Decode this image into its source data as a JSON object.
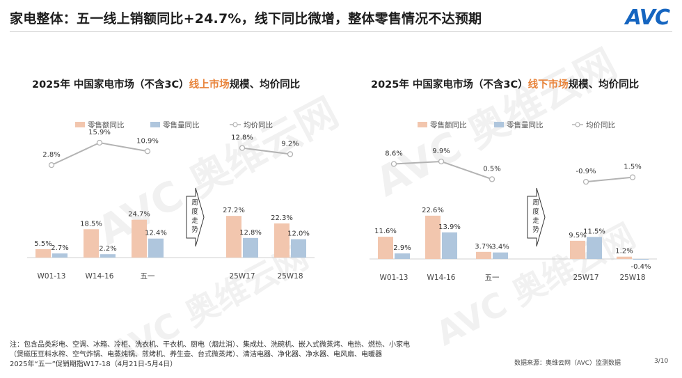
{
  "page": {
    "title": "家电整体：五一线上销额同比+24.7%，线下同比微增，整体零售情况不达预期",
    "logo": "AVC",
    "watermark_text": "AVC 奥维云网",
    "footnote": [
      "注：包含品类彩电、空调、冰箱、冷柜、洗衣机、干衣机、厨电（烟灶消）、集成灶、洗碗机、嵌入式微蒸烤、电热、燃热、小家电",
      "（煲磁压豆料水榨、空气炸锅、电蒸炖锅、煎烤机、养生壶、台式微蒸烤）、清洁电器、净化器、净水器、电风扇、电暖器",
      "2025年“五一”促销期指W17-18（4月21日-5月4日）"
    ],
    "source": "数据来源：奥维云网（AVC）监测数据",
    "page_number": "3/10"
  },
  "panels": {
    "online": {
      "title_pre": "2025年 中国家电市场（不含3C）",
      "title_highlight": "线上市场",
      "title_post": "规模、均价同比"
    },
    "offline": {
      "title_pre": "2025年 中国家电市场（不含3C）",
      "title_highlight": "线下市场",
      "title_post": "规模、均价同比"
    }
  },
  "colors": {
    "sales_amount": "#f2c6ae",
    "sales_volume": "#afc6dd",
    "avg_price": "#b3b3b3",
    "highlight": "#e8833a",
    "label": "#333333"
  },
  "chart_data": [
    {
      "type": "bar",
      "panel": "online",
      "categories": [
        "W01-13",
        "W14-16",
        "五一",
        "25W17",
        "25W18"
      ],
      "series": [
        {
          "name": "零售额同比",
          "kind": "bar",
          "values": [
            5.5,
            18.5,
            24.7,
            27.2,
            22.3
          ],
          "labels": [
            "5.5%",
            "18.5%",
            "24.7%",
            "27.2%",
            "22.3%"
          ]
        },
        {
          "name": "零售量同比",
          "kind": "bar",
          "values": [
            2.7,
            2.2,
            12.4,
            12.8,
            12.0
          ],
          "labels": [
            "2.7%",
            "2.2%",
            "12.4%",
            "12.8%",
            "12.0%"
          ]
        },
        {
          "name": "均价同比",
          "kind": "line",
          "values": [
            2.8,
            15.9,
            10.9,
            12.8,
            9.2
          ],
          "labels": [
            "2.8%",
            "15.9%",
            "10.9%",
            "12.8%",
            "9.2%"
          ]
        }
      ],
      "trend_label": "周度走势",
      "legend": "top"
    },
    {
      "type": "bar",
      "panel": "offline",
      "categories": [
        "W01-13",
        "W14-16",
        "五一",
        "25W17",
        "25W18"
      ],
      "series": [
        {
          "name": "零售额同比",
          "kind": "bar",
          "values": [
            11.6,
            22.6,
            3.7,
            9.5,
            1.2
          ],
          "labels": [
            "11.6%",
            "22.6%",
            "3.7%",
            "9.5%",
            "1.2%"
          ]
        },
        {
          "name": "零售量同比",
          "kind": "bar",
          "values": [
            2.9,
            13.9,
            3.4,
            11.5,
            -0.4
          ],
          "labels": [
            "2.9%",
            "13.9%",
            "3.4%",
            "11.5%",
            "-0.4%"
          ]
        },
        {
          "name": "均价同比",
          "kind": "line",
          "values": [
            8.6,
            9.9,
            0.5,
            -0.9,
            1.5
          ],
          "labels": [
            "8.6%",
            "9.9%",
            "0.5%",
            "-0.9%",
            "1.5%"
          ]
        }
      ],
      "trend_label": "周度走势",
      "legend": "top"
    }
  ]
}
